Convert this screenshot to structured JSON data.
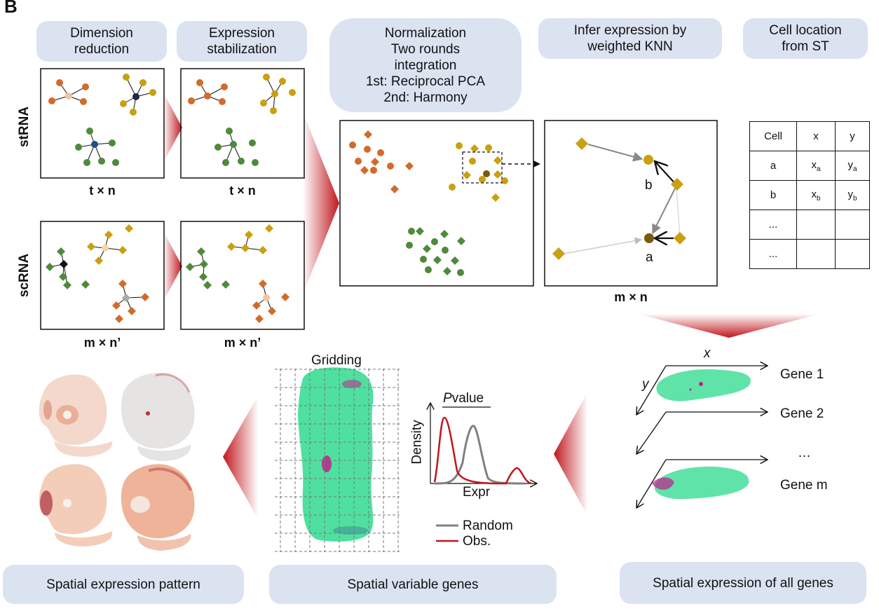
{
  "panel_letter": "B",
  "labels": {
    "dimension_reduction": [
      "Dimension",
      "reduction"
    ],
    "expression_stabilization": [
      "Expression",
      "stabilization"
    ],
    "normalization": [
      "Normalization",
      "Two rounds",
      "integration",
      "1st: Reciprocal PCA",
      "2nd: Harmony"
    ],
    "infer_expression": [
      "Infer expression by",
      "weighted KNN"
    ],
    "cell_location": [
      "Cell location",
      "from ST"
    ],
    "spatial_expression_pattern": "Spatial expression pattern",
    "spatial_variable_genes": "Spatial variable genes",
    "spatial_expression_all_genes": "Spatial expression of all genes"
  },
  "row_labels": {
    "strna": "stRNA",
    "scrna": "scRNA"
  },
  "dims": {
    "st_tn_1": "t × n",
    "st_tn_2": "t × n",
    "sc_mn_1": "m × n’",
    "sc_mn_2": "m × n’",
    "knn_mn": "m × n"
  },
  "knn": {
    "point_b": "b",
    "point_a": "a"
  },
  "table": {
    "headers": [
      "Cell",
      "x",
      "y"
    ],
    "rows": [
      [
        "a",
        "x",
        "a",
        "y",
        "a"
      ],
      [
        "b",
        "x",
        "b",
        "y",
        "b"
      ],
      [
        "...",
        "",
        "",
        "",
        ""
      ],
      [
        "...",
        "",
        "",
        "",
        ""
      ]
    ]
  },
  "gridding": "Gridding",
  "density_plot": {
    "pvalue_italic": "P",
    "pvalue_rest": "value",
    "ylabel": "Density",
    "xlabel": "Expr",
    "legend": [
      "Random",
      "Obs."
    ]
  },
  "axes3d": {
    "x": "x",
    "y": "y"
  },
  "genes": [
    "Gene 1",
    "Gene 2",
    "…",
    "Gene m"
  ],
  "colors": {
    "label_bg": "#dbe3f1",
    "arrow_red": "#c0161c",
    "orange": "#d46a2a",
    "gold": "#c9a010",
    "green": "#4e8a3a",
    "mint": "#4fe0a0",
    "magenta": "#c0208a"
  }
}
